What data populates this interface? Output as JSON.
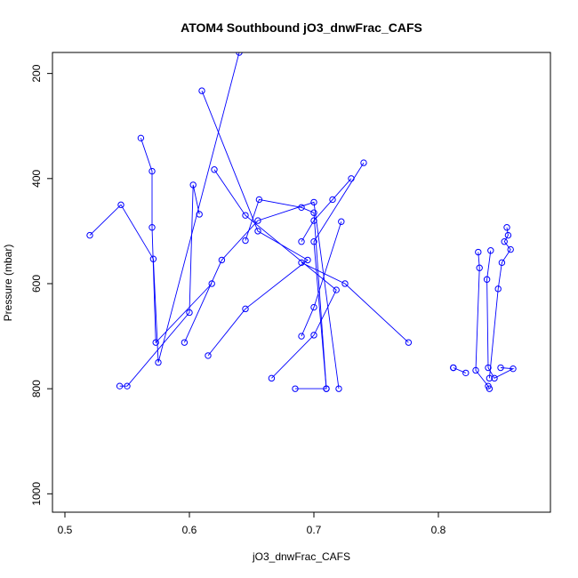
{
  "chart_data": {
    "type": "line",
    "title": "ATOM4 Southbound jO3_dnwFrac_CAFS",
    "xlabel": "jO3_dnwFrac_CAFS",
    "ylabel": "Pressure (mbar)",
    "xlim": [
      0.49,
      0.89
    ],
    "ylim": [
      1035,
      160
    ],
    "y_reversed": true,
    "markers": "open-circle",
    "color": "#0000ff",
    "grid": false,
    "x_ticks": [
      0.5,
      0.6,
      0.7,
      0.8
    ],
    "x_tick_labels": [
      "0.5",
      "0.6",
      "0.7",
      "0.8"
    ],
    "y_ticks": [
      200,
      400,
      600,
      800,
      1000
    ],
    "y_tick_labels": [
      "200",
      "400",
      "600",
      "800",
      "1000"
    ],
    "series": [
      {
        "x": [
          0.52,
          0.545,
          0.571,
          0.575,
          0.64
        ],
        "y": [
          508,
          450,
          553,
          750,
          160
        ]
      },
      {
        "x": [
          0.561,
          0.57,
          0.57,
          0.573,
          0.618
        ],
        "y": [
          323,
          386,
          493,
          712,
          600
        ]
      },
      {
        "x": [
          0.544,
          0.55,
          0.6,
          0.603,
          0.608
        ],
        "y": [
          795,
          795,
          655,
          412,
          468
        ]
      },
      {
        "x": [
          0.61,
          0.655,
          0.695,
          0.645,
          0.615
        ],
        "y": [
          233,
          500,
          555,
          648,
          737
        ]
      },
      {
        "x": [
          0.62,
          0.645,
          0.718,
          0.7,
          0.666
        ],
        "y": [
          383,
          470,
          612,
          698,
          780
        ]
      },
      {
        "x": [
          0.596,
          0.626,
          0.655,
          0.7,
          0.72
        ],
        "y": [
          712,
          555,
          480,
          445,
          800
        ]
      },
      {
        "x": [
          0.645,
          0.656,
          0.69,
          0.7,
          0.71
        ],
        "y": [
          518,
          440,
          455,
          465,
          800
        ]
      },
      {
        "x": [
          0.685,
          0.71,
          0.7,
          0.74
        ],
        "y": [
          800,
          800,
          520,
          370
        ]
      },
      {
        "x": [
          0.73,
          0.715,
          0.7,
          0.69
        ],
        "y": [
          400,
          440,
          480,
          520
        ]
      },
      {
        "x": [
          0.722,
          0.7,
          0.69
        ],
        "y": [
          482,
          645,
          700
        ]
      },
      {
        "x": [
          0.776,
          0.725,
          0.69
        ],
        "y": [
          712,
          600,
          560
        ]
      },
      {
        "x": [
          0.832,
          0.833,
          0.83,
          0.84,
          0.841
        ],
        "y": [
          540,
          570,
          765,
          795,
          800
        ]
      },
      {
        "x": [
          0.855,
          0.856,
          0.853,
          0.858,
          0.851,
          0.848,
          0.841
        ],
        "y": [
          493,
          508,
          520,
          535,
          560,
          610,
          780
        ]
      },
      {
        "x": [
          0.842,
          0.839,
          0.84,
          0.845,
          0.86,
          0.85
        ],
        "y": [
          537,
          592,
          760,
          780,
          762,
          760
        ]
      },
      {
        "x": [
          0.812,
          0.822,
          0.812
        ],
        "y": [
          760,
          770,
          760
        ]
      }
    ]
  }
}
